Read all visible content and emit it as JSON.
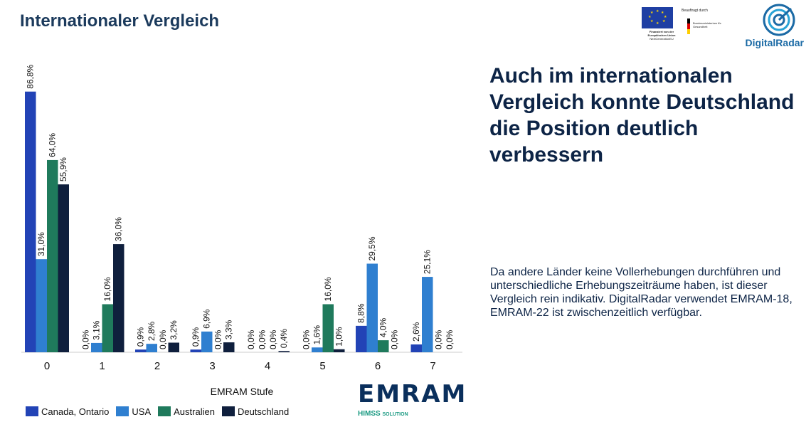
{
  "header": {
    "title": "Internationaler Vergleich"
  },
  "logos": {
    "eu_caption": "Finanziert von der Europäischen Union",
    "eu_sub": "NextGenerationEU",
    "bmg_label": "Beauftragt durch",
    "bmg_name": "Bundesministerium für Gesundheit",
    "digitalradar": "DigitalRadar",
    "emram_word": "EMRAM",
    "emram_sub_1": "HIMSS",
    "emram_sub_2": "SOLUTION"
  },
  "headline": "Auch im internationalen Vergleich konnte Deutschland die Position deutlich verbessern",
  "note": "Da andere Länder keine Vollerhebungen durchführen und unterschiedliche Erhebungszeiträume haben, ist dieser Vergleich rein indikativ. DigitalRadar verwendet EMRAM-18, EMRAM-22 ist zwischenzeitlich verfügbar.",
  "chart_data": {
    "type": "bar",
    "xlabel": "EMRAM Stufe",
    "ylabel": "",
    "ylim": [
      0,
      90
    ],
    "grid": false,
    "legend_position": "bottom",
    "categories": [
      "0",
      "1",
      "2",
      "3",
      "4",
      "5",
      "6",
      "7"
    ],
    "series": [
      {
        "name": "Canada, Ontario",
        "color": "#2243b6",
        "values": [
          86.8,
          0.0,
          0.9,
          0.9,
          0.0,
          0.0,
          8.8,
          2.6
        ],
        "labels": [
          "86,8%",
          "0,0%",
          "0,9%",
          "0,9%",
          "0,0%",
          "0,0%",
          "8,8%",
          "2,6%"
        ]
      },
      {
        "name": "USA",
        "color": "#2f7fd0",
        "values": [
          31.0,
          3.1,
          2.8,
          6.9,
          0.0,
          1.6,
          29.5,
          25.1
        ],
        "labels": [
          "31,0%",
          "3,1%",
          "2,8%",
          "6,9%",
          "0,0%",
          "1,6%",
          "29,5%",
          "25,1%"
        ]
      },
      {
        "name": "Australien",
        "color": "#1f7a5c",
        "values": [
          64.0,
          16.0,
          0.0,
          0.0,
          0.0,
          16.0,
          4.0,
          0.0
        ],
        "labels": [
          "64,0%",
          "16,0%",
          "0,0%",
          "0,0%",
          "0,0%",
          "16,0%",
          "4,0%",
          "0,0%"
        ]
      },
      {
        "name": "Deutschland",
        "color": "#0f1f3d",
        "values": [
          55.9,
          36.0,
          3.2,
          3.3,
          0.4,
          1.0,
          0.0,
          0.0
        ],
        "labels": [
          "55,9%",
          "36,0%",
          "3,2%",
          "3,3%",
          "0,4%",
          "1,0%",
          "0,0%",
          "0,0%"
        ]
      }
    ]
  }
}
